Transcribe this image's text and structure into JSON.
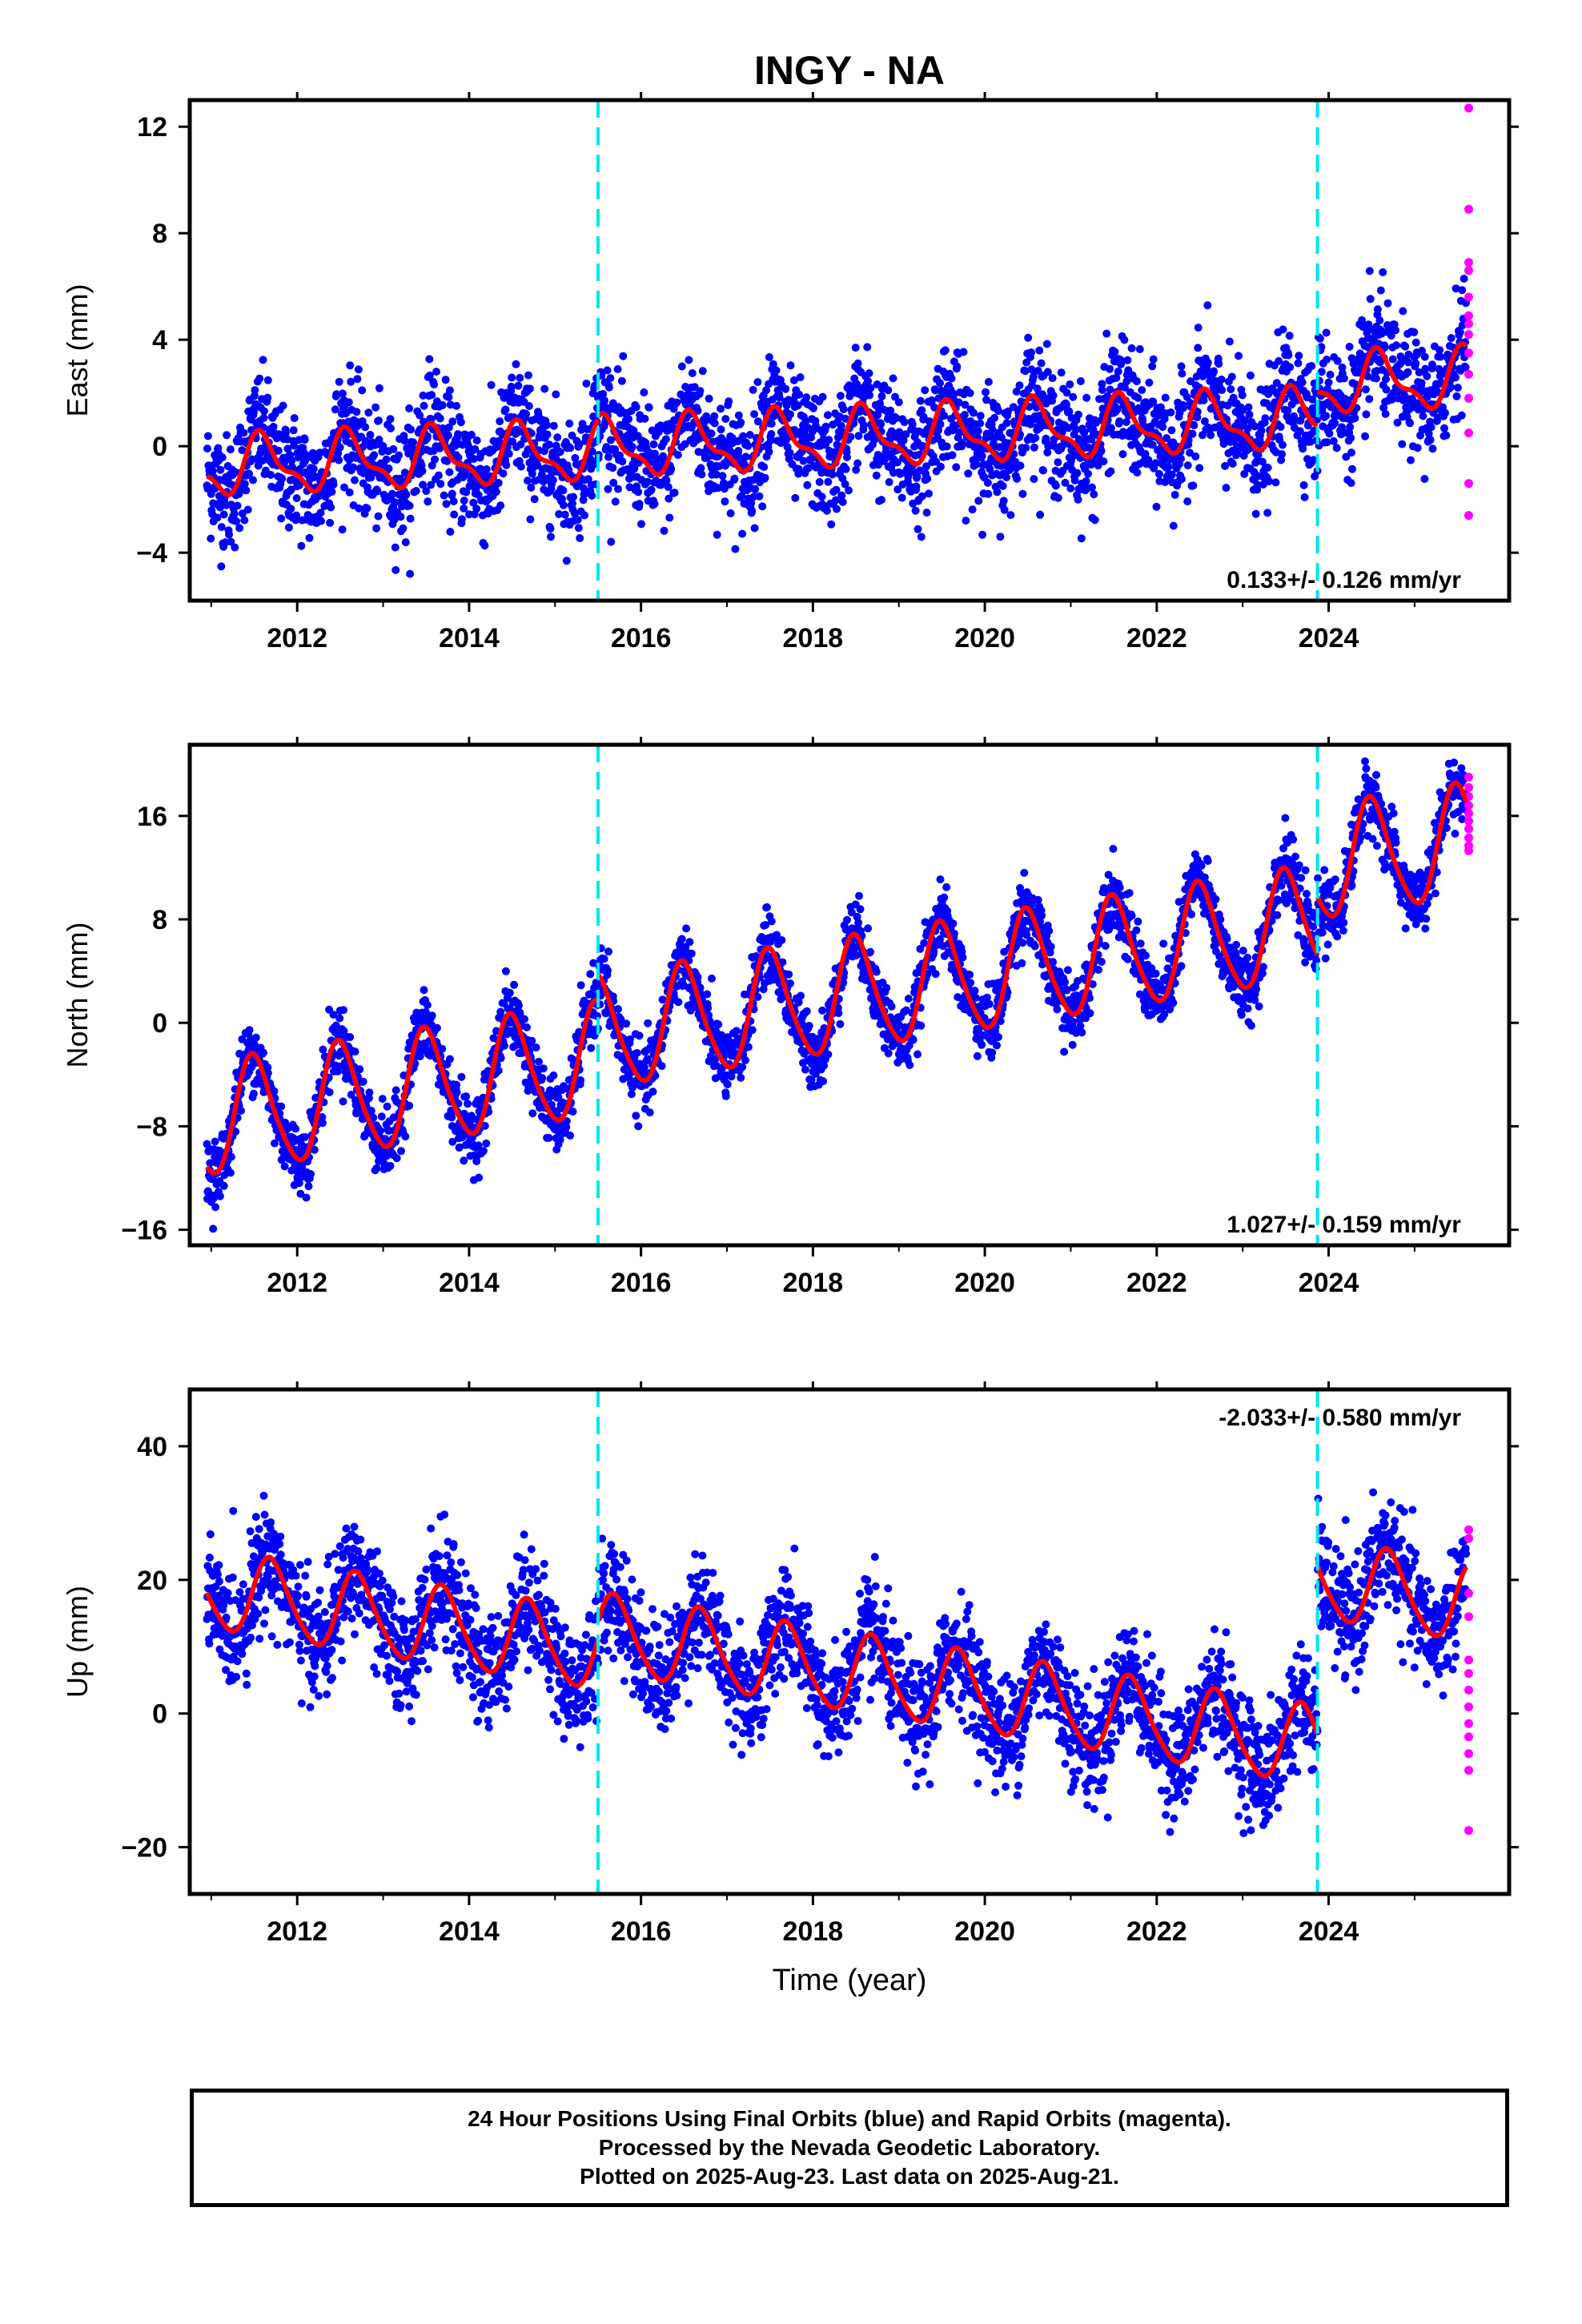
{
  "chart_data": [
    {
      "type": "scatter",
      "panel": "east",
      "title": "INGY - NA",
      "ylabel": "East (mm)",
      "xlabel": "",
      "xlim": [
        2010.75,
        2026.1
      ],
      "ylim": [
        -5.8,
        13.0
      ],
      "xticks": [
        "2012",
        "2014",
        "2016",
        "2018",
        "2020",
        "2022",
        "2024"
      ],
      "yticks": [
        "12",
        "8",
        "4",
        "0",
        "−4"
      ],
      "ytick_values": [
        12,
        8,
        4,
        0,
        -4
      ],
      "rate_label": "0.133+/- 0.126 mm/yr",
      "rate_position": "bottom-right",
      "offsets": [
        2015.5,
        2023.87
      ],
      "model": {
        "start": 2010.95,
        "end": 2025.6,
        "annual_amplitude": 1.0,
        "semiannual_amplitude": 0.4,
        "phase_peak": 0.6,
        "segments": [
          {
            "start": 2010.95,
            "end": 2015.5,
            "level": -0.8
          },
          {
            "start": 2015.5,
            "end": 2023.87,
            "level": -0.1
          },
          {
            "start": 2023.87,
            "end": 2025.6,
            "level": 2.3
          }
        ],
        "slope": 0.133
      },
      "scatter_sigma": 1.1,
      "rapid_orbit_points": [
        12.7,
        8.9,
        6.9,
        6.6,
        5.6,
        4.9,
        4.6,
        4.2,
        3.5,
        2.7,
        1.8,
        0.5,
        -1.4,
        -2.6
      ],
      "series": [
        {
          "name": "Final Orbits",
          "color": "#0000ff",
          "marker": "dot"
        },
        {
          "name": "Rapid Orbits",
          "color": "#ff00ff",
          "marker": "dot"
        },
        {
          "name": "Model fit",
          "color": "#ff0000",
          "marker": "line"
        }
      ]
    },
    {
      "type": "scatter",
      "panel": "north",
      "title": "",
      "ylabel": "North (mm)",
      "xlabel": "",
      "xlim": [
        2010.75,
        2026.1
      ],
      "ylim": [
        -17.2,
        21.5
      ],
      "xticks": [
        "2012",
        "2014",
        "2016",
        "2018",
        "2020",
        "2022",
        "2024"
      ],
      "yticks": [
        "16",
        "8",
        "0",
        "−8",
        "−16"
      ],
      "ytick_values": [
        16,
        8,
        0,
        -8,
        -16
      ],
      "rate_label": "1.027+/- 0.159 mm/yr",
      "rate_position": "bottom-right",
      "offsets": [
        2015.5,
        2023.87
      ],
      "model": {
        "start": 2010.95,
        "end": 2025.6,
        "annual_amplitude": 4.3,
        "semiannual_amplitude": 0.6,
        "phase_peak": 0.5,
        "segments": [
          {
            "start": 2010.95,
            "end": 2015.5,
            "level": -7.6
          },
          {
            "start": 2015.5,
            "end": 2023.87,
            "level": -0.9
          },
          {
            "start": 2023.87,
            "end": 2025.6,
            "level": 12.2
          }
        ],
        "slope": 1.027
      },
      "scatter_sigma": 1.3,
      "rapid_orbit_points": [
        19.0,
        18.2,
        17.5,
        16.8,
        16.2,
        15.6,
        15.0,
        14.3,
        13.7,
        13.3
      ],
      "series": [
        {
          "name": "Final Orbits",
          "color": "#0000ff",
          "marker": "dot"
        },
        {
          "name": "Rapid Orbits",
          "color": "#ff00ff",
          "marker": "dot"
        },
        {
          "name": "Model fit",
          "color": "#ff0000",
          "marker": "line"
        }
      ]
    },
    {
      "type": "scatter",
      "panel": "up",
      "title": "",
      "ylabel": "Up (mm)",
      "xlabel": "Time (year)",
      "xlim": [
        2010.75,
        2026.1
      ],
      "ylim": [
        -27.0,
        48.5
      ],
      "xticks": [
        "2012",
        "2014",
        "2016",
        "2018",
        "2020",
        "2022",
        "2024"
      ],
      "yticks": [
        "40",
        "20",
        "0",
        "−20"
      ],
      "ytick_values": [
        40,
        20,
        0,
        -20
      ],
      "rate_label": "-2.033+/- 0.580 mm/yr",
      "rate_position": "top-right",
      "offsets": [
        2015.5,
        2023.87
      ],
      "model": {
        "start": 2010.95,
        "end": 2025.6,
        "annual_amplitude": 5.8,
        "semiannual_amplitude": 0.8,
        "phase_peak": 0.7,
        "segments": [
          {
            "start": 2010.95,
            "end": 2015.5,
            "level": 18.5
          },
          {
            "start": 2015.5,
            "end": 2023.87,
            "level": 12.0
          },
          {
            "start": 2023.87,
            "end": 2025.6,
            "level": 20.0
          }
        ],
        "slope": -2.033
      },
      "scatter_sigma": 4.2,
      "rapid_orbit_points": [
        27.5,
        26.2,
        18.0,
        14.5,
        8.0,
        6.0,
        3.5,
        1.0,
        -1.5,
        -3.5,
        -6.0,
        -8.5,
        -17.5
      ],
      "series": [
        {
          "name": "Final Orbits",
          "color": "#0000ff",
          "marker": "dot"
        },
        {
          "name": "Rapid Orbits",
          "color": "#ff00ff",
          "marker": "dot"
        },
        {
          "name": "Model fit",
          "color": "#ff0000",
          "marker": "line"
        }
      ]
    }
  ],
  "footer": {
    "line1": "24 Hour Positions Using Final Orbits (blue) and Rapid Orbits (magenta).",
    "line2": "Processed by the Nevada Geodetic Laboratory.",
    "line3": "Plotted on 2025-Aug-23. Last data on 2025-Aug-21."
  },
  "colors": {
    "final": "#0000ff",
    "rapid": "#ff00ff",
    "model": "#ff0000",
    "offset_line": "#00e5ee",
    "frame": "#000000"
  }
}
